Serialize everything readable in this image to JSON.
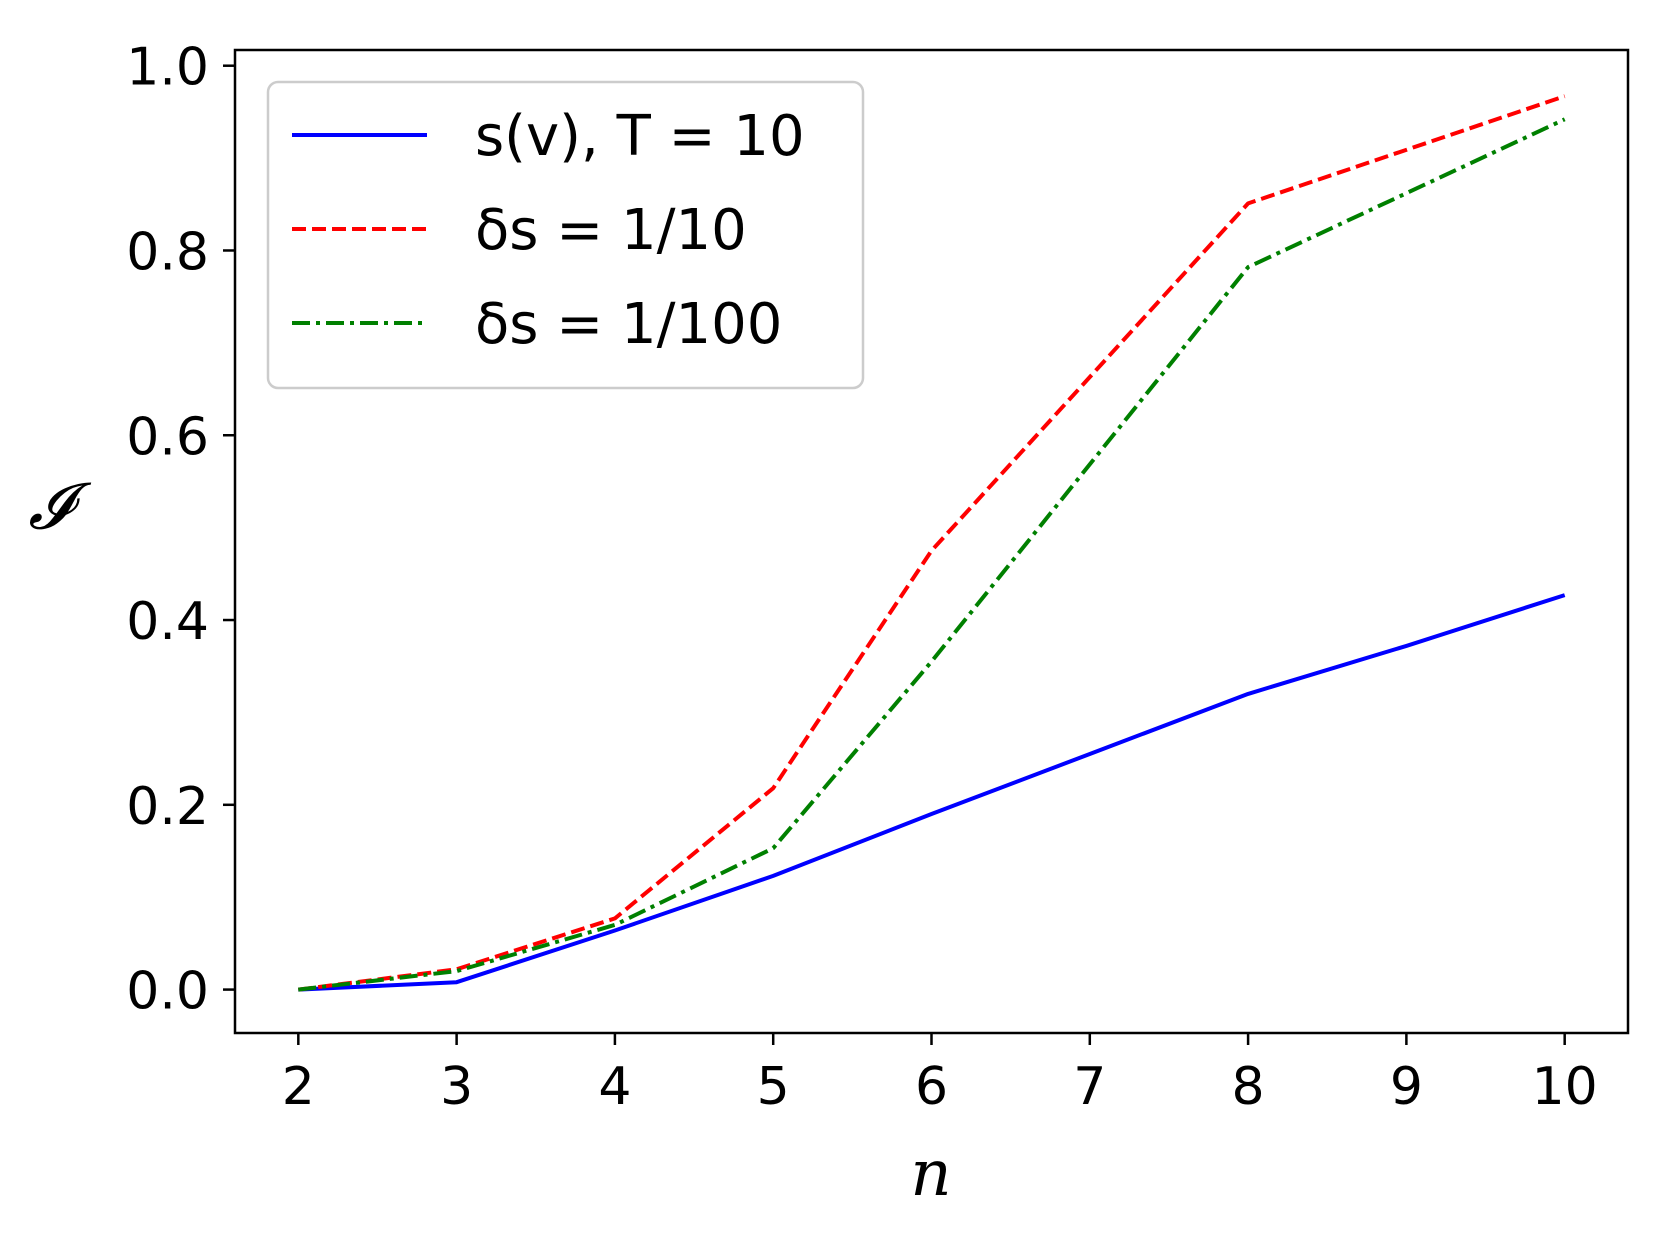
{
  "chart_data": {
    "type": "line",
    "xlabel": "n",
    "ylabel": "𝓘",
    "x": [
      2,
      3,
      4,
      5,
      6,
      7,
      8,
      9,
      10
    ],
    "xticks": [
      "2",
      "3",
      "4",
      "5",
      "6",
      "7",
      "8",
      "9",
      "10"
    ],
    "yticks": [
      "0.0",
      "0.2",
      "0.4",
      "0.6",
      "0.8",
      "1.0"
    ],
    "xlim": [
      1.6,
      10.4
    ],
    "ylim": [
      -0.047,
      1.017
    ],
    "grid": false,
    "legend_position": "top-left",
    "series": [
      {
        "name": "s(v), T = 10",
        "color": "#0000ff",
        "style": "solid",
        "x": [
          2,
          3,
          4,
          5,
          6,
          7,
          8,
          9,
          10
        ],
        "values": [
          0.0,
          0.008,
          0.064,
          0.123,
          0.19,
          0.255,
          0.32,
          0.372,
          0.427
        ]
      },
      {
        "name": "δs = 1/10",
        "color": "#ff0000",
        "style": "dashed",
        "x": [
          2,
          3,
          4,
          5,
          6,
          8,
          10
        ],
        "values": [
          0.0,
          0.022,
          0.077,
          0.218,
          0.475,
          0.851,
          0.967
        ]
      },
      {
        "name": "δs = 1/100",
        "color": "#008000",
        "style": "dashdot",
        "x": [
          2,
          3,
          4,
          5,
          6,
          8,
          10
        ],
        "values": [
          0.0,
          0.02,
          0.07,
          0.153,
          0.355,
          0.782,
          0.942
        ]
      }
    ]
  }
}
